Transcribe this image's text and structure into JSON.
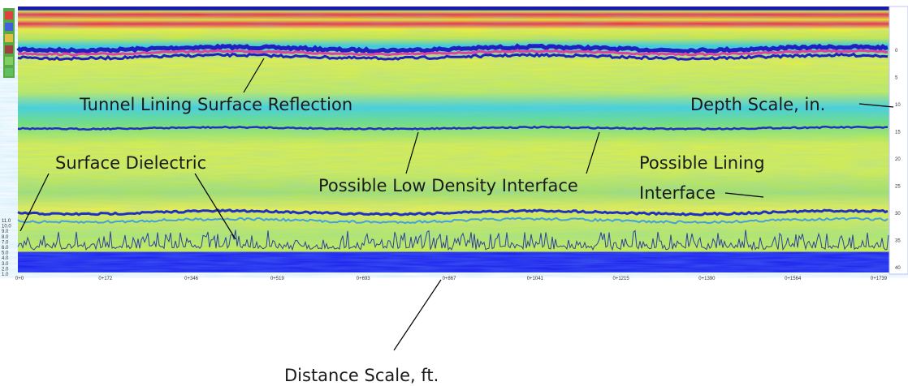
{
  "annotations": {
    "surface_reflection": "Tunnel Lining Surface Reflection",
    "depth_scale": "Depth Scale, in.",
    "surface_dielectric": "Surface Dielectric",
    "low_density": "Possible Low Density Interface",
    "lining_interface_1": "Possible Lining",
    "lining_interface_2": "Interface",
    "distance_scale": "Distance Scale, ft."
  },
  "distance_ticks": [
    "0+0",
    "0+172",
    "0+346",
    "0+519",
    "0+693",
    "0+867",
    "0+1041",
    "0+1215",
    "0+1390",
    "0+1564",
    "0+1739"
  ],
  "depth_ticks": [
    "0",
    "5",
    "10",
    "15",
    "20",
    "25",
    "30",
    "35",
    "40"
  ],
  "dielectric_ticks": [
    "11.0",
    "10.0",
    "9.0",
    "8.0",
    "7.0",
    "6.0",
    "5.0",
    "4.0",
    "3.0",
    "2.0",
    "1.0"
  ]
}
